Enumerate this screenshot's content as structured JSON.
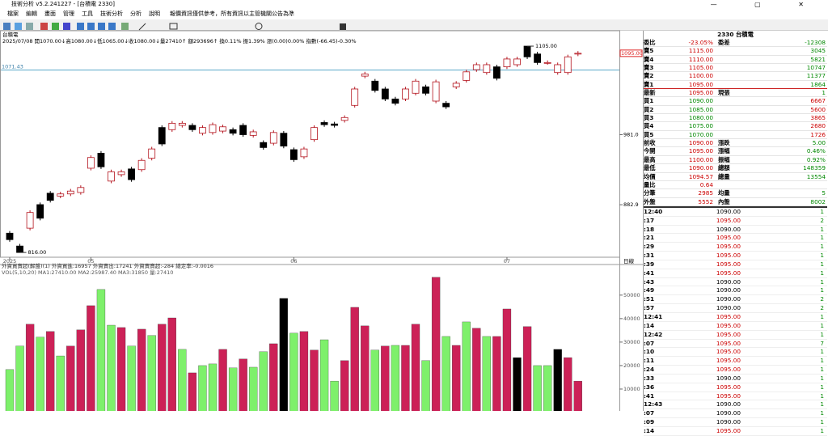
{
  "window": {
    "title": "技術分析 v5.2.241227 - [台積電 2330]"
  },
  "menu": [
    "檔案",
    "編輯",
    "畫面",
    "管理",
    "工具",
    "技術分析",
    "分析",
    "說明"
  ],
  "notice": "報價資訊僅供參考，所有資訊以主管機關公告為準",
  "chart_data": [
    {
      "type": "candlestick",
      "title": "台積電",
      "subtitle": "2025/07/08 開1070.00↓高1080.00↓低1065.00↓收1080.00↓量27410↑ 額293696↑ 換0.11% 振1.39% 漲(0.00)0.00% 指數(-66.45)-0.30%",
      "open": [
        843,
        825,
        850,
        883,
        899,
        895,
        898,
        900,
        934,
        955,
        916,
        925,
        933,
        932,
        948,
        991,
        988,
        994,
        994,
        983,
        984,
        986,
        988,
        994,
        980,
        970,
        969,
        983,
        960,
        950,
        974,
        998,
        996,
        1001,
        1022,
        1063,
        1056,
        1045,
        1031,
        1031,
        1039,
        1048,
        1028,
        1025,
        1048,
        1057,
        1072,
        1068,
        1076,
        1076,
        1079,
        1105,
        1094,
        1082,
        1068,
        1068,
        1094
      ],
      "close": [
        834,
        816,
        872,
        864,
        889,
        898,
        902,
        907,
        949,
        936,
        929,
        929,
        918,
        945,
        961,
        968,
        997,
        997,
        988,
        991,
        995,
        992,
        983,
        981,
        985,
        963,
        984,
        965,
        946,
        961,
        991,
        995,
        994,
        1005,
        1045,
        1066,
        1043,
        1031,
        1025,
        1045,
        1056,
        1039,
        1055,
        1020,
        1053,
        1069,
        1079,
        1079,
        1060,
        1087,
        1087,
        1090,
        1082,
        1082,
        1079,
        1090,
        1095
      ],
      "high": [
        846,
        828,
        875,
        886,
        902,
        901,
        905,
        910,
        952,
        958,
        932,
        932,
        936,
        948,
        964,
        994,
        1000,
        1000,
        997,
        994,
        998,
        995,
        991,
        997,
        988,
        973,
        987,
        986,
        963,
        964,
        994,
        1001,
        999,
        1008,
        1048,
        1069,
        1059,
        1048,
        1034,
        1048,
        1059,
        1051,
        1058,
        1028,
        1056,
        1072,
        1082,
        1082,
        1079,
        1090,
        1090,
        1105,
        1097,
        1085,
        1082,
        1093,
        1098
      ],
      "low": [
        831,
        816,
        847,
        861,
        886,
        892,
        895,
        897,
        931,
        933,
        913,
        922,
        915,
        929,
        945,
        965,
        985,
        991,
        985,
        980,
        981,
        983,
        980,
        978,
        977,
        960,
        966,
        962,
        943,
        947,
        971,
        992,
        991,
        998,
        1019,
        1060,
        1040,
        1028,
        1022,
        1028,
        1036,
        1036,
        1025,
        1017,
        1045,
        1054,
        1069,
        1065,
        1057,
        1073,
        1076,
        1087,
        1079,
        1079,
        1065,
        1065,
        1091
      ],
      "up_color": "#b4141e",
      "down_color": "#000000",
      "ylim": [
        811.6,
        1124.3
      ],
      "yticks": [
        882.9,
        {
          "value": 981,
          "label": "981.0"
        }
      ],
      "last_price": {
        "value": 1095,
        "label": "1095.00"
      },
      "reference_line": 1071.43,
      "annotations": [
        {
          "index": 51,
          "value": 1105,
          "label": "1105.00"
        },
        {
          "index": 1,
          "value": 816,
          "label": "816.00"
        }
      ],
      "xticks": [
        {
          "value": 0,
          "label": "2025"
        },
        {
          "value": 8,
          "label": "05"
        },
        {
          "value": 28,
          "label": "06"
        },
        {
          "value": 49,
          "label": "07"
        }
      ],
      "interval_label": "日線"
    },
    {
      "type": "bar",
      "title": "外資買賣超(解盤)(1) 外資買進:16957 外資賣出:17241 外資賣賣超:-284 總定率:-0.0016",
      "subtitle": "VOL(5,10,20) MA1:27410.00 MA2:25987.40 MA3:31850 量:27410",
      "values": [
        18300,
        28300,
        37600,
        32100,
        34500,
        24100,
        28300,
        35200,
        45500,
        52400,
        37200,
        36200,
        28300,
        35500,
        32800,
        37600,
        40300,
        26900,
        16900,
        20000,
        20700,
        26900,
        19000,
        22800,
        19300,
        25900,
        29300,
        48600,
        33800,
        34500,
        26600,
        31000,
        13400,
        22100,
        44800,
        36900,
        26600,
        28300,
        28600,
        28600,
        37600,
        22100,
        57600,
        32400,
        28600,
        38600,
        35900,
        32400,
        32400,
        44100,
        23400,
        36600,
        20000,
        20000,
        26900,
        23400,
        13400
      ],
      "colors": [
        "#7ef06b",
        "#7ef06b",
        "#cc2157",
        "#7ef06b",
        "#cc2157",
        "#7ef06b",
        "#cc2157",
        "#cc2157",
        "#cc2157",
        "#7ef06b",
        "#7ef06b",
        "#cc2157",
        "#7ef06b",
        "#cc2157",
        "#7ef06b",
        "#cc2157",
        "#cc2157",
        "#7ef06b",
        "#cc2157",
        "#7ef06b",
        "#7ef06b",
        "#cc2157",
        "#7ef06b",
        "#cc2157",
        "#7ef06b",
        "#7ef06b",
        "#cc2157",
        "#000000",
        "#7ef06b",
        "#cc2157",
        "#cc2157",
        "#7ef06b",
        "#7ef06b",
        "#cc2157",
        "#cc2157",
        "#cc2157",
        "#7ef06b",
        "#cc2157",
        "#7ef06b",
        "#cc2157",
        "#cc2157",
        "#7ef06b",
        "#cc2157",
        "#7ef06b",
        "#cc2157",
        "#7ef06b",
        "#cc2157",
        "#7ef06b",
        "#cc2157",
        "#cc2157",
        "#000000",
        "#cc2157",
        "#7ef06b",
        "#7ef06b",
        "#000000",
        "#cc2157",
        "#cc2157"
      ],
      "ylim": [
        0,
        62000
      ],
      "yticks": [
        10000,
        20000,
        30000,
        40000,
        50000
      ]
    }
  ],
  "quote_panel": {
    "header": "2330 台積電",
    "rows": [
      [
        "委比",
        "-23.05%",
        "委差",
        "-12308"
      ],
      [
        "賣5",
        "1115.00",
        "",
        "3045"
      ],
      [
        "賣4",
        "1110.00",
        "",
        "5821"
      ],
      [
        "賣3",
        "1105.00",
        "",
        "10747"
      ],
      [
        "賣2",
        "1100.00",
        "",
        "11377"
      ],
      [
        "賣1",
        "1095.00",
        "",
        "1864"
      ],
      [
        "最新",
        "1095.00",
        "現張",
        "1"
      ],
      [
        "買1",
        "1090.00",
        "",
        "6667"
      ],
      [
        "買2",
        "1085.00",
        "",
        "5600"
      ],
      [
        "買3",
        "1080.00",
        "",
        "3865"
      ],
      [
        "買4",
        "1075.00",
        "",
        "2680"
      ],
      [
        "買5",
        "1070.00",
        "",
        "1726"
      ],
      [
        "前收",
        "1090.00",
        "漲跌",
        "5.00"
      ],
      [
        "今開",
        "1095.00",
        "漲幅",
        "0.46%"
      ],
      [
        "最高",
        "1100.00",
        "振幅",
        "0.92%"
      ],
      [
        "最低",
        "1090.00",
        "總額",
        "148359"
      ],
      [
        "均價",
        "1094.57",
        "總量",
        "13554"
      ],
      [
        "量比",
        "0.64",
        "",
        ""
      ],
      [
        "分筆",
        "2985",
        "均量",
        "5"
      ],
      [
        "外盤",
        "5552",
        "內盤",
        "8002"
      ]
    ],
    "ticks": [
      [
        "12:40",
        "1090.00",
        "1"
      ],
      [
        ":17",
        "1095.00",
        "2"
      ],
      [
        ":18",
        "1090.00",
        "1"
      ],
      [
        ":21",
        "1095.00",
        "1"
      ],
      [
        ":29",
        "1095.00",
        "1"
      ],
      [
        ":31",
        "1095.00",
        "1"
      ],
      [
        ":39",
        "1095.00",
        "1"
      ],
      [
        ":41",
        "1095.00",
        "1"
      ],
      [
        ":43",
        "1090.00",
        "1"
      ],
      [
        ":49",
        "1090.00",
        "1"
      ],
      [
        ":51",
        "1090.00",
        "2"
      ],
      [
        ":57",
        "1090.00",
        "2"
      ],
      [
        "12:41",
        "1095.00",
        "1"
      ],
      [
        ":14",
        "1095.00",
        "1"
      ],
      [
        "12:42",
        "1095.00",
        "1"
      ],
      [
        ":07",
        "1095.00",
        "7"
      ],
      [
        ":10",
        "1095.00",
        "1"
      ],
      [
        ":11",
        "1095.00",
        "1"
      ],
      [
        ":24",
        "1095.00",
        "1"
      ],
      [
        ":33",
        "1090.00",
        "1"
      ],
      [
        ":36",
        "1095.00",
        "1"
      ],
      [
        ":41",
        "1095.00",
        "1"
      ],
      [
        "12:43",
        "1090.00",
        "1"
      ],
      [
        ":07",
        "1090.00",
        "1"
      ],
      [
        ":09",
        "1090.00",
        "1"
      ],
      [
        ":14",
        "1095.00",
        "1"
      ]
    ]
  }
}
